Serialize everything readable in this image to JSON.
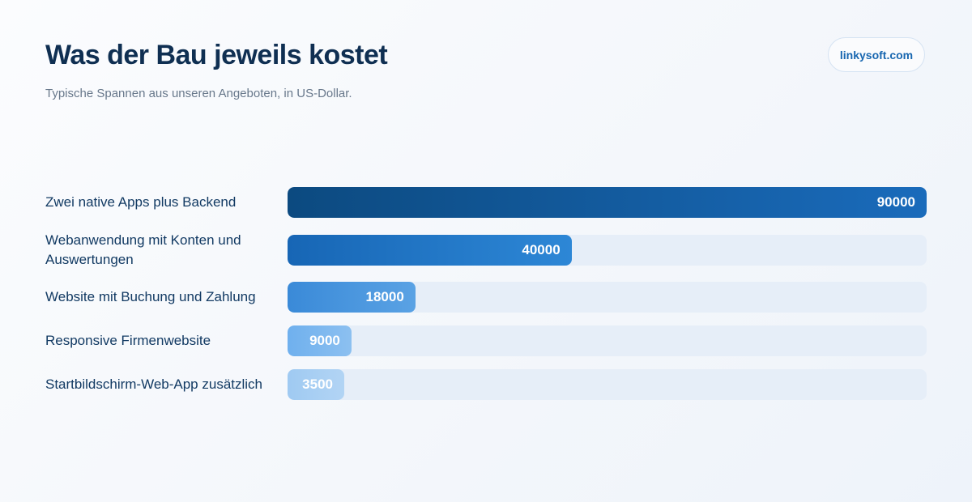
{
  "header": {
    "title": "Was der Bau jeweils kostet",
    "subtitle": "Typische Spannen aus unseren Angeboten, in US-Dollar.",
    "brand": "linkysoft.com"
  },
  "colors": {
    "title": "#0f2f52",
    "brand": "#1766b0",
    "track": "#e6eef8"
  },
  "chart_data": {
    "type": "bar",
    "orientation": "horizontal",
    "title": "Was der Bau jeweils kostet",
    "subtitle": "Typische Spannen aus unseren Angeboten, in US-Dollar.",
    "categories": [
      "Zwei native Apps plus Backend",
      "Webanwendung mit Konten und Auswertungen",
      "Website mit Buchung und Zahlung",
      "Responsive Firmenwebsite",
      "Startbildschirm-Web-App zusätzlich"
    ],
    "values": [
      90000,
      40000,
      18000,
      9000,
      3500
    ],
    "value_labels": [
      "90000",
      "40000",
      "18000",
      "9000",
      "3500"
    ],
    "xlim": [
      0,
      90000
    ],
    "grid": false,
    "legend": "none",
    "bar_colors": [
      [
        "#0c4a80",
        "#1a6bbb"
      ],
      [
        "#1766b5",
        "#2d87d6"
      ],
      [
        "#3a8ad8",
        "#5aa2e4"
      ],
      [
        "#6fb0ee",
        "#8cc0f0"
      ],
      [
        "#9fcaf2",
        "#b2d4f4"
      ]
    ]
  }
}
